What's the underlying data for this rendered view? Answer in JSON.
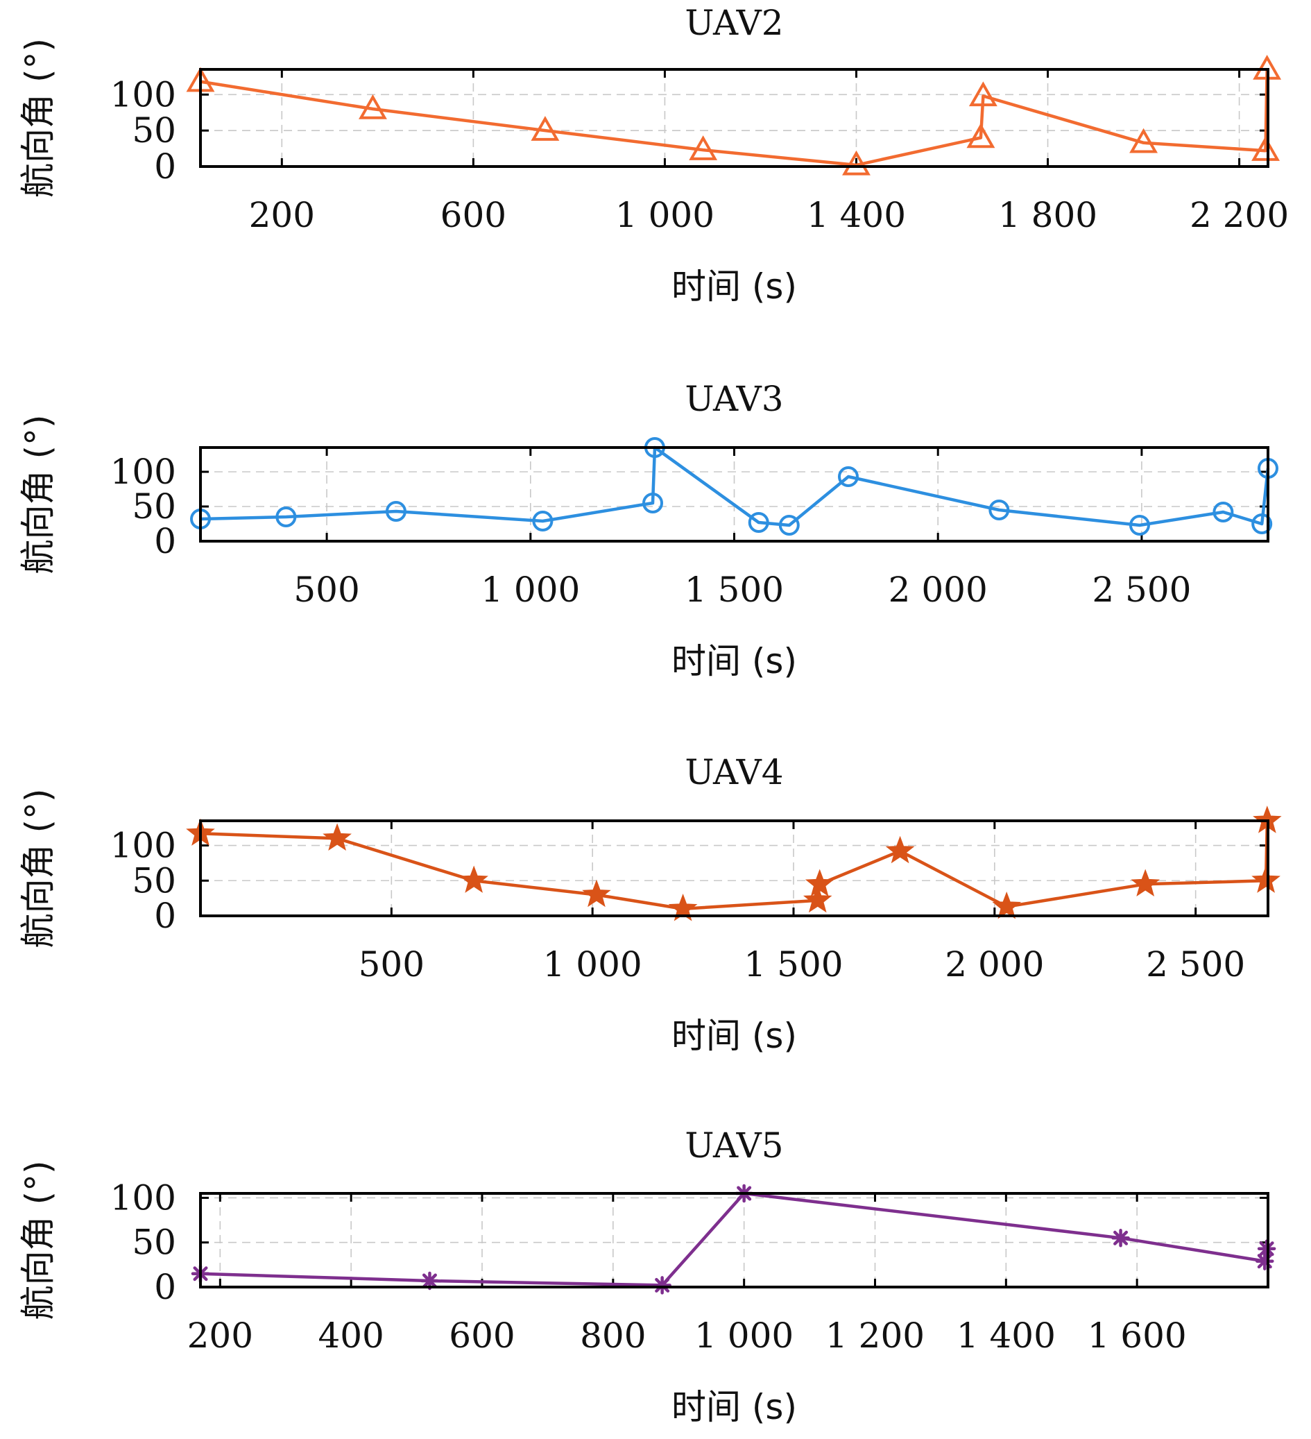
{
  "chart_data": [
    {
      "type": "line",
      "title": "UAV2",
      "xlabel": "时间 (s)",
      "ylabel": "航向角 (°)",
      "xlim": [
        30,
        2260
      ],
      "ylim": [
        0,
        135
      ],
      "xticks": [
        200,
        600,
        1000,
        1400,
        1800,
        2200
      ],
      "xtick_labels": [
        "200",
        "600",
        "1 000",
        "1 400",
        "1 800",
        "2 200"
      ],
      "yticks": [
        0,
        50,
        100
      ],
      "ytick_labels": [
        "0",
        "50",
        "100"
      ],
      "grid": true,
      "series": [
        {
          "color": "#F26B30",
          "marker": "triangle",
          "x": [
            30,
            390,
            750,
            1080,
            1400,
            1660,
            1665,
            2000,
            2255,
            2258
          ],
          "y": [
            118,
            80,
            50,
            23,
            2,
            40,
            98,
            33,
            22,
            135
          ]
        }
      ]
    },
    {
      "type": "line",
      "title": "UAV3",
      "xlabel": "时间 (s)",
      "ylabel": "航向角 (°)",
      "xlim": [
        190,
        2810
      ],
      "ylim": [
        0,
        135
      ],
      "xticks": [
        500,
        1000,
        1500,
        2000,
        2500
      ],
      "xtick_labels": [
        "500",
        "1 000",
        "1 500",
        "2 000",
        "2 500"
      ],
      "yticks": [
        0,
        50,
        100
      ],
      "ytick_labels": [
        "0",
        "50",
        "100"
      ],
      "grid": true,
      "series": [
        {
          "color": "#2D8FE0",
          "marker": "circle",
          "x": [
            190,
            400,
            670,
            1030,
            1300,
            1305,
            1560,
            1635,
            1780,
            2150,
            2495,
            2700,
            2795,
            2810
          ],
          "y": [
            32,
            35,
            43,
            29,
            55,
            135,
            27,
            23,
            93,
            45,
            23,
            42,
            25,
            105
          ]
        }
      ]
    },
    {
      "type": "line",
      "title": "UAV4",
      "xlabel": "时间 (s)",
      "ylabel": "航向角 (°)",
      "xlim": [
        25,
        2680
      ],
      "ylim": [
        0,
        135
      ],
      "xticks": [
        500,
        1000,
        1500,
        2000,
        2500
      ],
      "xtick_labels": [
        "500",
        "1 000",
        "1 500",
        "2 000",
        "2 500"
      ],
      "yticks": [
        0,
        50,
        100
      ],
      "ytick_labels": [
        "0",
        "50",
        "100"
      ],
      "grid": true,
      "series": [
        {
          "color": "#D95318",
          "marker": "star",
          "x": [
            25,
            365,
            705,
            1010,
            1225,
            1560,
            1565,
            1765,
            2030,
            2375,
            2675,
            2678
          ],
          "y": [
            117,
            110,
            50,
            30,
            10,
            22,
            45,
            92,
            13,
            45,
            50,
            135
          ]
        }
      ]
    },
    {
      "type": "line",
      "title": "UAV5",
      "xlabel": "时间 (s)",
      "ylabel": "航向角 (°)",
      "xlim": [
        170,
        1800
      ],
      "ylim": [
        0,
        105
      ],
      "xticks": [
        200,
        400,
        600,
        800,
        1000,
        1200,
        1400,
        1600
      ],
      "xtick_labels": [
        "200",
        "400",
        "600",
        "800",
        "1 000",
        "1 200",
        "1 400",
        "1 600"
      ],
      "yticks": [
        0,
        50,
        100
      ],
      "ytick_labels": [
        "0",
        "50",
        "100"
      ],
      "grid": true,
      "series": [
        {
          "color": "#7E2F8E",
          "marker": "asterisk",
          "x": [
            170,
            520,
            875,
            1000,
            1575,
            1795,
            1798
          ],
          "y": [
            15,
            7,
            2,
            105,
            55,
            29,
            43
          ]
        }
      ]
    }
  ]
}
